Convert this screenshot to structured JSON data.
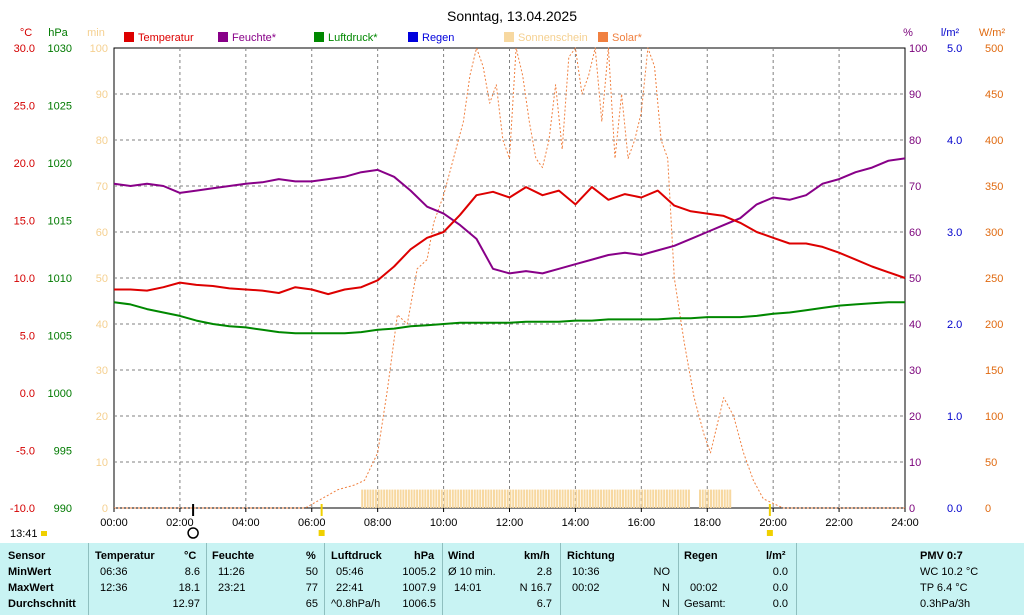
{
  "chart_data": {
    "type": "line",
    "title": "Sonntag, 13.04.2025",
    "time_label": "13:41",
    "x_ticks": [
      "00:00",
      "02:00",
      "04:00",
      "06:00",
      "08:00",
      "10:00",
      "12:00",
      "14:00",
      "16:00",
      "18:00",
      "20:00",
      "22:00",
      "24:00"
    ],
    "axes": {
      "temp": {
        "unit": "°C",
        "range": [
          -10,
          30
        ],
        "ticks": [
          "30.0",
          "25.0",
          "20.0",
          "15.0",
          "10.0",
          "5.0",
          "0.0",
          "-5.0",
          "-10.0"
        ],
        "color": "#d40000"
      },
      "hpa": {
        "unit": "hPa",
        "range": [
          990,
          1030
        ],
        "ticks": [
          "1030",
          "1025",
          "1020",
          "1015",
          "1010",
          "1005",
          "1000",
          "995",
          "990"
        ],
        "color": "#007a00"
      },
      "min": {
        "unit": "min",
        "range": [
          0,
          100
        ],
        "ticks": [
          "100",
          "90",
          "80",
          "70",
          "60",
          "50",
          "40",
          "30",
          "20",
          "10",
          "0"
        ],
        "color": "#f5d090"
      },
      "pct": {
        "unit": "%",
        "range": [
          0,
          100
        ],
        "ticks": [
          "100",
          "90",
          "80",
          "70",
          "60",
          "50",
          "40",
          "30",
          "20",
          "10",
          "0"
        ],
        "color": "#7a007a"
      },
      "rain": {
        "unit": "l/m²",
        "range": [
          0,
          5
        ],
        "ticks": [
          "5.0",
          "4.0",
          "3.0",
          "2.0",
          "1.0",
          "0.0"
        ],
        "color": "#0000cc"
      },
      "solar": {
        "unit": "W/m²",
        "range": [
          0,
          500
        ],
        "ticks": [
          "500",
          "450",
          "400",
          "350",
          "300",
          "250",
          "200",
          "150",
          "100",
          "50",
          "0"
        ],
        "color": "#e06a10"
      }
    },
    "legend": [
      {
        "name": "Temperatur",
        "color": "#dd0000"
      },
      {
        "name": "Feuchte*",
        "color": "#880088"
      },
      {
        "name": "Luftdruck*",
        "color": "#008800"
      },
      {
        "name": "Regen",
        "color": "#0000dd"
      },
      {
        "name": "Sonnenschein",
        "color": "#f7d8a0"
      },
      {
        "name": "Solar*",
        "color": "#f08040"
      }
    ],
    "series": [
      {
        "name": "Temperatur",
        "axis": "temp",
        "x": [
          0,
          0.5,
          1,
          1.5,
          2,
          2.5,
          3,
          3.5,
          4,
          4.5,
          5,
          5.5,
          6,
          6.5,
          7,
          7.5,
          8,
          8.5,
          9,
          9.5,
          10,
          10.5,
          11,
          11.5,
          12,
          12.5,
          13,
          13.5,
          14,
          14.5,
          15,
          15.5,
          16,
          16.5,
          17,
          17.5,
          18,
          18.5,
          19,
          19.5,
          20,
          20.5,
          21,
          21.5,
          22,
          22.5,
          23,
          23.5,
          24
        ],
        "y": [
          9.0,
          9.0,
          8.9,
          9.2,
          9.6,
          9.4,
          9.3,
          9.1,
          9.0,
          8.9,
          8.7,
          9.2,
          9.0,
          8.6,
          9.0,
          9.2,
          9.8,
          11.0,
          12.5,
          13.5,
          14.0,
          15.5,
          17.2,
          17.5,
          17.0,
          17.9,
          17.2,
          17.6,
          16.4,
          17.9,
          16.8,
          17.3,
          17.0,
          17.6,
          16.3,
          15.8,
          15.6,
          15.4,
          14.8,
          14.0,
          13.5,
          13.0,
          13.0,
          12.7,
          12.2,
          11.6,
          11.0,
          10.5,
          10.0
        ]
      },
      {
        "name": "Feuchte*",
        "axis": "pct",
        "x": [
          0,
          0.5,
          1,
          1.5,
          2,
          2.5,
          3,
          3.5,
          4,
          4.5,
          5,
          5.5,
          6,
          6.5,
          7,
          7.5,
          8,
          8.5,
          9,
          9.5,
          10,
          10.5,
          11,
          11.5,
          12,
          12.5,
          13,
          13.5,
          14,
          14.5,
          15,
          15.5,
          16,
          16.5,
          17,
          17.5,
          18,
          18.5,
          19,
          19.5,
          20,
          20.5,
          21,
          21.5,
          22,
          22.5,
          23,
          23.5,
          24
        ],
        "y": [
          70.5,
          70.0,
          70.5,
          70.0,
          68.5,
          69.0,
          69.5,
          70.0,
          70.5,
          70.8,
          71.5,
          71.0,
          71.0,
          71.5,
          72.0,
          73.0,
          73.5,
          72.0,
          69.0,
          65.5,
          64.0,
          61.5,
          58.5,
          52.0,
          51.0,
          51.5,
          51.0,
          52.0,
          53.0,
          54.0,
          55.0,
          55.5,
          55.0,
          56.0,
          57.0,
          58.5,
          60.0,
          61.5,
          63.0,
          66.0,
          67.5,
          67.0,
          68.0,
          70.5,
          71.5,
          73.0,
          74.0,
          75.5,
          76.0
        ]
      },
      {
        "name": "Luftdruck*",
        "axis": "hpa",
        "x": [
          0,
          0.5,
          1,
          1.5,
          2,
          2.5,
          3,
          3.5,
          4,
          4.5,
          5,
          5.5,
          6,
          6.5,
          7,
          7.5,
          8,
          8.5,
          9,
          9.5,
          10,
          10.5,
          11,
          11.5,
          12,
          12.5,
          13,
          13.5,
          14,
          14.5,
          15,
          15.5,
          16,
          16.5,
          17,
          17.5,
          18,
          18.5,
          19,
          19.5,
          20,
          20.5,
          21,
          21.5,
          22,
          22.5,
          23,
          23.5,
          24
        ],
        "y": [
          1007.9,
          1007.7,
          1007.3,
          1007.0,
          1006.7,
          1006.3,
          1006.0,
          1005.8,
          1005.7,
          1005.5,
          1005.3,
          1005.2,
          1005.2,
          1005.2,
          1005.2,
          1005.3,
          1005.5,
          1005.6,
          1005.8,
          1005.9,
          1006.0,
          1006.1,
          1006.1,
          1006.1,
          1006.1,
          1006.2,
          1006.2,
          1006.2,
          1006.3,
          1006.3,
          1006.4,
          1006.4,
          1006.4,
          1006.4,
          1006.5,
          1006.5,
          1006.6,
          1006.6,
          1006.6,
          1006.7,
          1006.9,
          1007.0,
          1007.2,
          1007.4,
          1007.6,
          1007.7,
          1007.8,
          1007.9,
          1007.9
        ]
      },
      {
        "name": "Solar*",
        "axis": "solar",
        "x": [
          0,
          5.8,
          6.3,
          6.8,
          7.3,
          7.6,
          8.0,
          8.3,
          8.6,
          8.9,
          9.2,
          9.5,
          9.7,
          10.0,
          10.3,
          10.6,
          10.8,
          11.0,
          11.2,
          11.4,
          11.6,
          11.8,
          12.0,
          12.2,
          12.4,
          12.6,
          12.8,
          13.0,
          13.2,
          13.4,
          13.6,
          13.8,
          14.0,
          14.2,
          14.4,
          14.6,
          14.8,
          15.0,
          15.2,
          15.4,
          15.6,
          15.8,
          16.0,
          16.2,
          16.4,
          16.6,
          16.8,
          17.0,
          17.3,
          17.6,
          17.9,
          18.1,
          18.3,
          18.5,
          18.8,
          19.1,
          19.4,
          19.7,
          20.0,
          20.3,
          20.6,
          24
        ],
        "y": [
          0,
          0,
          10,
          20,
          25,
          30,
          60,
          130,
          210,
          200,
          260,
          270,
          310,
          340,
          380,
          420,
          470,
          500,
          480,
          440,
          460,
          400,
          380,
          500,
          470,
          420,
          380,
          370,
          400,
          460,
          390,
          490,
          520,
          450,
          470,
          500,
          420,
          510,
          380,
          450,
          380,
          400,
          430,
          510,
          480,
          400,
          380,
          250,
          180,
          120,
          80,
          60,
          90,
          120,
          100,
          60,
          30,
          10,
          5,
          0,
          0,
          0
        ]
      }
    ],
    "sunshine_bars": {
      "axis": "min",
      "segments": [
        [
          "07:30",
          "17:25"
        ],
        [
          "17:45",
          "18:40"
        ]
      ],
      "value": 4
    },
    "markers": [
      {
        "label": "",
        "x": 2.4,
        "type": "circle",
        "color": "#000000"
      },
      {
        "label": "",
        "x": 6.3,
        "type": "diamond",
        "color": "#f0d000"
      },
      {
        "label": "",
        "x": 19.9,
        "type": "diamond",
        "color": "#f0d000"
      }
    ]
  },
  "table": {
    "col_sensor": {
      "title": "Sensor",
      "row1": "MinWert",
      "row2": "MaxWert",
      "row3": "Durchschnitt"
    },
    "col_temp": {
      "title": "Temperatur",
      "unit": "°C",
      "min_time": "06:36",
      "min_val": "8.6",
      "max_time": "12:36",
      "max_val": "18.1",
      "avg": "12.97"
    },
    "col_hum": {
      "title": "Feuchte",
      "unit": "%",
      "min_time": "11:26",
      "min_val": "50",
      "max_time": "23:21",
      "max_val": "77",
      "avg": "65"
    },
    "col_press": {
      "title": "Luftdruck",
      "unit": "hPa",
      "min_time": "05:46",
      "min_val": "1005.2",
      "max_time": "22:41",
      "max_val": "1007.9",
      "trend": "^0.8hPa/h",
      "avg": "1006.5"
    },
    "col_wind": {
      "title": "Wind",
      "unit": "km/h",
      "min_label": "Ø 10 min.",
      "min_val": "2.8",
      "max_time": "14:01",
      "max_val": "N 16.7",
      "avg": "6.7"
    },
    "col_dir": {
      "title": "Richtung",
      "min_time": "10:36",
      "min_val": "NO",
      "max_time": "00:02",
      "max_val": "N",
      "avg": "N"
    },
    "col_rain": {
      "title": "Regen",
      "unit": "l/m²",
      "max_time": "00:02",
      "min_val": "0.0",
      "max_val": "0.0",
      "total_label": "Gesamt:",
      "total": "0.0"
    },
    "col_pmv": {
      "title": "PMV 0:7",
      "wc": "WC 10.2 °C",
      "tp": "TP 6.4 °C",
      "trend": "0.3hPa/3h"
    }
  }
}
